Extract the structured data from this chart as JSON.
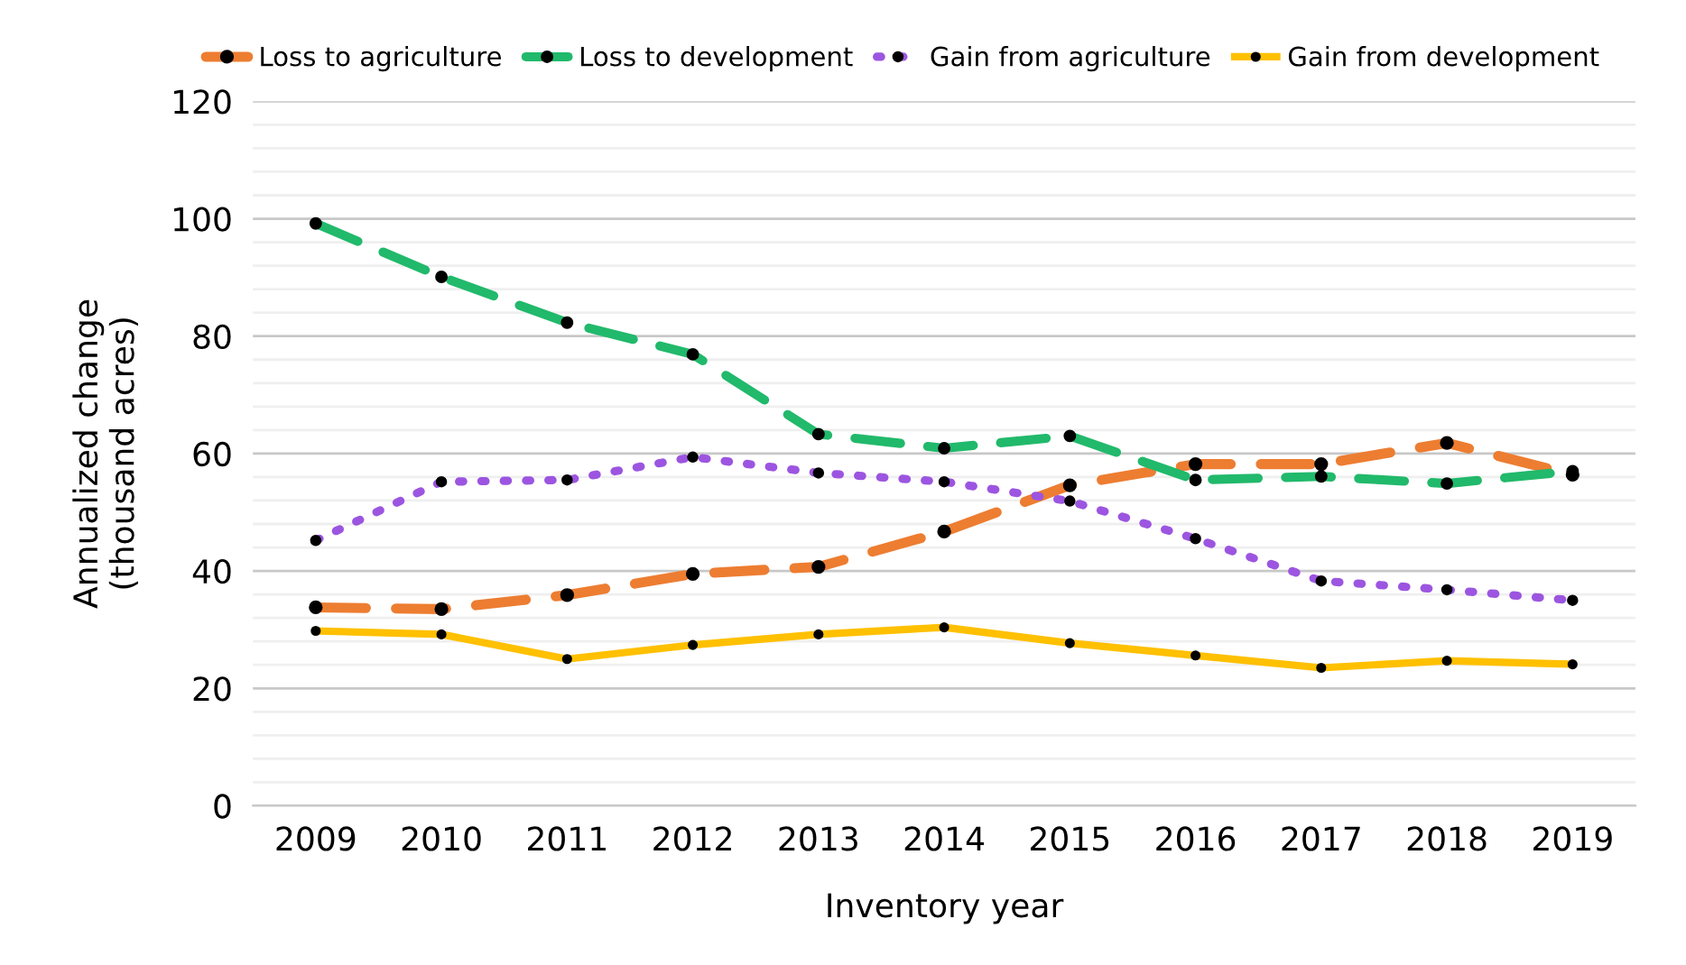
{
  "chart_data": {
    "type": "line",
    "xlabel": "Inventory year",
    "ylabel": "Annualized change\n(thousand acres)",
    "categories": [
      "2009",
      "2010",
      "2011",
      "2012",
      "2013",
      "2014",
      "2015",
      "2016",
      "2017",
      "2018",
      "2019"
    ],
    "series": [
      {
        "name": "Loss to agriculture",
        "color": "#ed7d31",
        "line_style": "dashed",
        "values": [
          33.8,
          33.5,
          35.9,
          39.5,
          40.7,
          46.7,
          54.6,
          58.2,
          58.2,
          61.8,
          56.4
        ]
      },
      {
        "name": "Loss to development",
        "color": "#21b96b",
        "line_style": "dashed",
        "values": [
          99.2,
          90.1,
          82.3,
          76.9,
          63.3,
          60.9,
          63.0,
          55.5,
          56.1,
          54.9,
          57.0
        ]
      },
      {
        "name": "Gain from agriculture",
        "color": "#9c55e0",
        "line_style": "dotted",
        "values": [
          45.2,
          55.2,
          55.5,
          59.4,
          56.7,
          55.2,
          51.9,
          45.5,
          38.3,
          36.8,
          35.0
        ]
      },
      {
        "name": "Gain from development",
        "color": "#ffc000",
        "line_style": "solid",
        "values": [
          29.8,
          29.2,
          25.0,
          27.4,
          29.2,
          30.4,
          27.7,
          25.6,
          23.5,
          24.7,
          24.1
        ]
      }
    ],
    "ylim": [
      0,
      120
    ],
    "yticks": [
      0,
      {
        "value": 4,
        "label": null
      },
      {
        "value": 8,
        "label": null
      },
      {
        "value": 12,
        "label": null
      },
      {
        "value": 16,
        "label": null
      },
      20,
      {
        "value": 24,
        "label": null
      },
      {
        "value": 28,
        "label": null
      },
      {
        "value": 32,
        "label": null
      },
      {
        "value": 36,
        "label": null
      },
      40,
      {
        "value": 44,
        "label": null
      },
      {
        "value": 48,
        "label": null
      },
      {
        "value": 52,
        "label": null
      },
      {
        "value": 56,
        "label": null
      },
      60,
      {
        "value": 64,
        "label": null
      },
      {
        "value": 68,
        "label": null
      },
      {
        "value": 72,
        "label": null
      },
      {
        "value": 76,
        "label": null
      },
      80,
      {
        "value": 84,
        "label": null
      },
      {
        "value": 88,
        "label": null
      },
      {
        "value": 92,
        "label": null
      },
      {
        "value": 96,
        "label": null
      },
      100,
      {
        "value": 104,
        "label": null
      },
      {
        "value": 108,
        "label": null
      },
      {
        "value": 112,
        "label": null
      },
      {
        "value": 116,
        "label": null
      },
      120
    ],
    "grid": "y",
    "legend": "top",
    "marker": "circle"
  }
}
